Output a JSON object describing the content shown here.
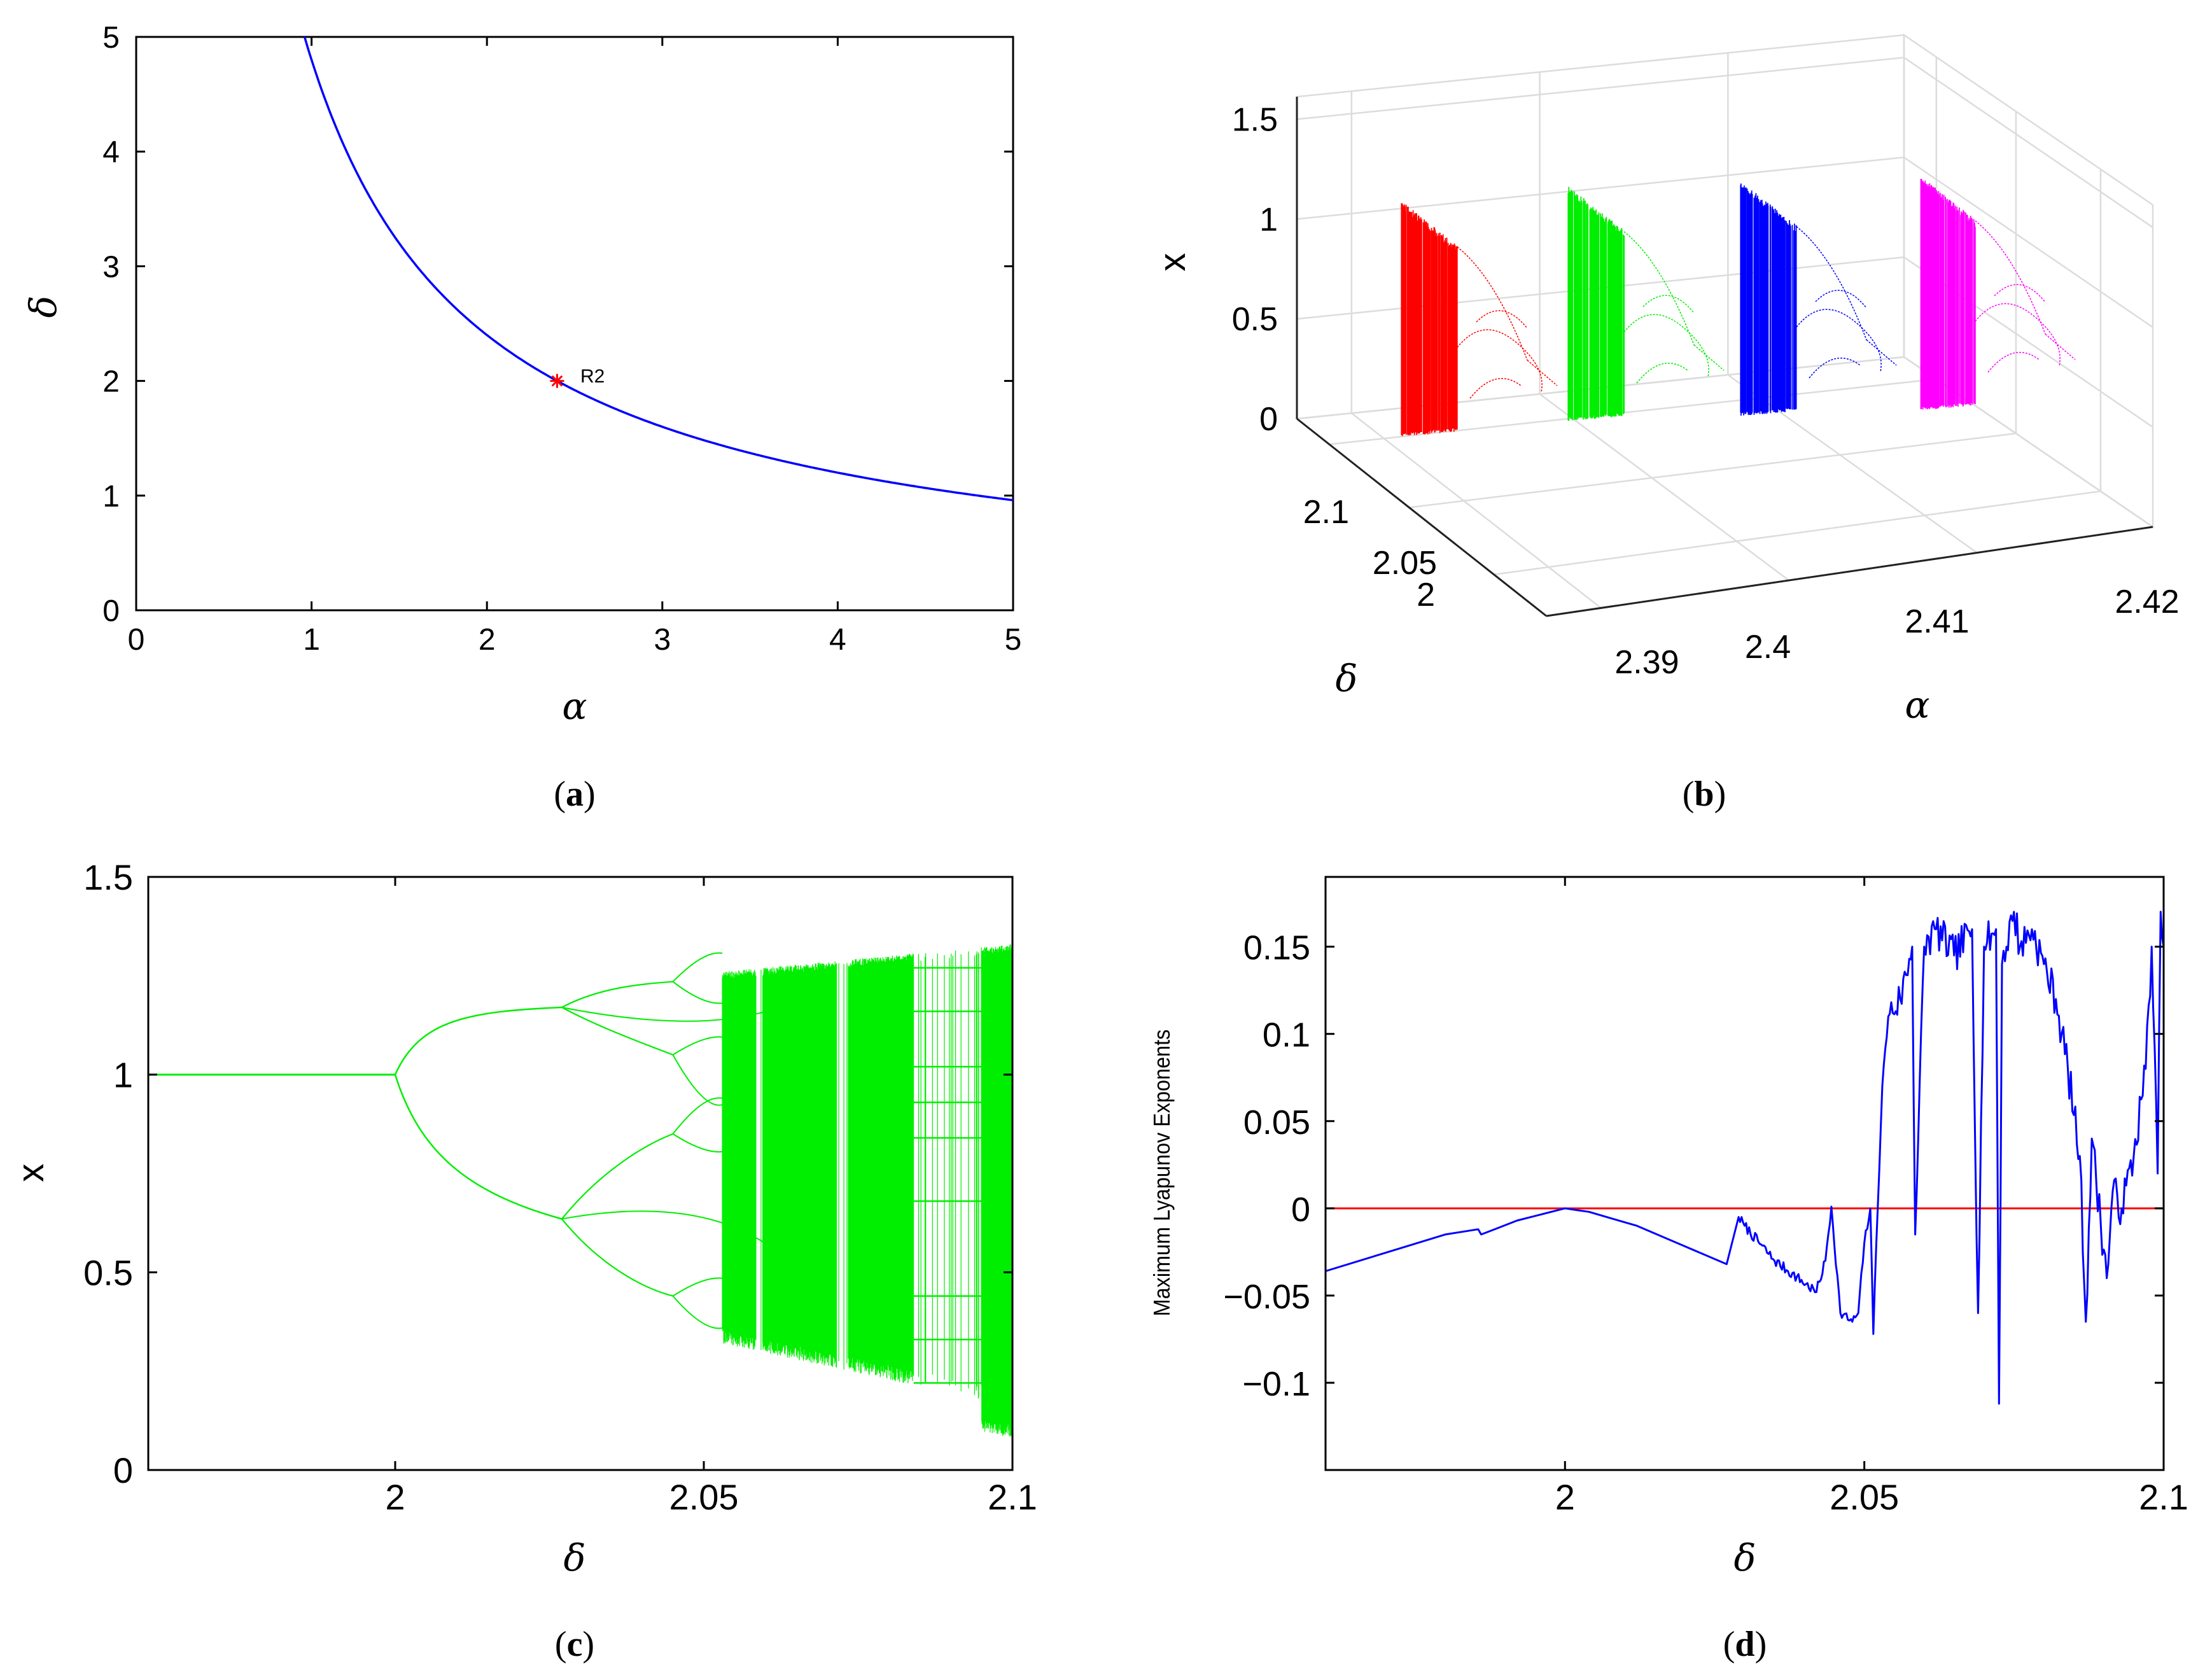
{
  "colors": {
    "blue": "#0000ff",
    "red": "#ff0000",
    "green": "#00ee00",
    "magenta": "#ff00ff",
    "grid": "#dddddd",
    "axis": "#000000"
  },
  "panels": {
    "a": {
      "caption_prefix": "(",
      "caption_letter": "a",
      "caption_suffix": ")",
      "chart_data": {
        "type": "line",
        "title": "",
        "xlabel": "α",
        "ylabel": "δ",
        "xlim": [
          0,
          5
        ],
        "ylim": [
          0,
          5
        ],
        "xticks": [
          0,
          1,
          2,
          3,
          4,
          5
        ],
        "xtick_labels": [
          "0",
          "1",
          "2",
          "3",
          "4",
          "5"
        ],
        "yticks": [
          0,
          1,
          2,
          3,
          4,
          5
        ],
        "ytick_labels": [
          "0",
          "1",
          "2",
          "3",
          "4",
          "5"
        ],
        "series": [
          {
            "name": "curve",
            "relation": "delta = 4.8 / alpha",
            "color": "#0000ff",
            "x_range": [
              0.96,
              5
            ]
          }
        ],
        "point": {
          "x": 2.4,
          "y": 2.0,
          "label": "R2",
          "color": "#ff0000",
          "marker": "*"
        }
      }
    },
    "b": {
      "caption_prefix": "(",
      "caption_letter": "b",
      "caption_suffix": ")",
      "chart_data": {
        "type": "scatter",
        "title": "",
        "xlabel": "α",
        "ylabel": "δ",
        "zlabel": "x",
        "xticks": [
          2.39,
          2.4,
          2.41,
          2.42
        ],
        "xtick_labels": [
          "2.39",
          "2.4",
          "2.41",
          "2.42"
        ],
        "yticks": [
          2,
          2.05,
          2.1
        ],
        "ytick_labels": [
          "2",
          "2.05",
          "2.1"
        ],
        "zticks": [
          0,
          0.5,
          1,
          1.5
        ],
        "ztick_labels": [
          "0",
          "0.5",
          "1",
          "1.5"
        ],
        "zlim": [
          0,
          1.5
        ],
        "slices": [
          {
            "alpha": 2.39,
            "color": "#ff0000"
          },
          {
            "alpha": 2.4,
            "color": "#00ee00"
          },
          {
            "alpha": 2.41,
            "color": "#0000ff"
          },
          {
            "alpha": 2.42,
            "color": "#ff00ff"
          }
        ],
        "grid": true
      }
    },
    "c": {
      "caption_prefix": "(",
      "caption_letter": "c",
      "caption_suffix": ")",
      "chart_data": {
        "type": "scatter",
        "title": "",
        "xlabel": "δ",
        "ylabel": "x",
        "xlim": [
          1.96,
          2.1
        ],
        "ylim": [
          0,
          1.5
        ],
        "xticks": [
          2,
          2.05,
          2.1
        ],
        "xtick_labels": [
          "2",
          "2.05",
          "2.1"
        ],
        "yticks": [
          0,
          0.5,
          1,
          1.5
        ],
        "ytick_labels": [
          "0",
          "0.5",
          "1",
          "1.5"
        ],
        "color": "#00ee00",
        "bifurcations": [
          {
            "delta": 2.0,
            "from_period": 1,
            "to_period": 2
          },
          {
            "delta": 2.027,
            "from_period": 2,
            "to_period": 4
          },
          {
            "delta": 2.045,
            "from_period": 4,
            "to_period": 8
          },
          {
            "delta": 2.053,
            "chaos_onset": true
          }
        ],
        "fixed_point": 1.0,
        "period2_branches": [
          1.17,
          0.64
        ],
        "chaos_band": [
          0.15,
          1.32
        ]
      }
    },
    "d": {
      "caption_prefix": "(",
      "caption_letter": "d",
      "caption_suffix": ")",
      "chart_data": {
        "type": "line",
        "title": "",
        "xlabel": "δ",
        "ylabel": "Maximum Lyapunov Exponents",
        "xlim": [
          1.96,
          2.1
        ],
        "ylim": [
          -0.15,
          0.19
        ],
        "xticks": [
          2,
          2.05,
          2.1
        ],
        "xtick_labels": [
          "2",
          "2.05",
          "2.1"
        ],
        "yticks": [
          0.15,
          0.1,
          0.05,
          0,
          -0.05,
          -0.1
        ],
        "ytick_labels": [
          "0.15",
          "0.1",
          "0.05",
          "0",
          "−0.05",
          "−0.1"
        ],
        "series": [
          {
            "name": "MLE",
            "color": "#0000ff",
            "x": [
              1.96,
              1.98,
              1.9855,
              1.986,
              1.992,
              2.0,
              2.004,
              2.012,
              2.027,
              2.029,
              2.03,
              2.035,
              2.042,
              2.0435,
              2.0445,
              2.046,
              2.048,
              2.049,
              2.05,
              2.051,
              2.0515,
              2.052,
              2.053,
              2.054,
              2.056,
              2.058,
              2.0585,
              2.06,
              2.062,
              2.065,
              2.068,
              2.069,
              2.07,
              2.072,
              2.0725,
              2.073,
              2.075,
              2.076,
              2.078,
              2.08,
              2.082,
              2.084,
              2.086,
              2.087,
              2.088,
              2.0905,
              2.0915,
              2.093,
              2.095,
              2.097,
              2.098,
              2.099,
              2.0995,
              2.1
            ],
            "y": [
              -0.036,
              -0.015,
              -0.012,
              -0.015,
              -0.007,
              0.0,
              -0.002,
              -0.01,
              -0.032,
              -0.005,
              -0.01,
              -0.03,
              -0.048,
              -0.03,
              0.001,
              -0.06,
              -0.065,
              -0.06,
              -0.02,
              0.0,
              -0.072,
              -0.02,
              0.07,
              0.11,
              0.12,
              0.15,
              -0.015,
              0.15,
              0.16,
              0.145,
              0.16,
              -0.06,
              0.15,
              0.16,
              -0.112,
              0.14,
              0.17,
              0.15,
              0.16,
              0.14,
              0.12,
              0.08,
              0.03,
              -0.065,
              0.04,
              -0.04,
              0.01,
              0.0,
              0.03,
              0.08,
              0.15,
              0.02,
              0.17,
              0.15
            ]
          },
          {
            "name": "zero line",
            "color": "#ff0000",
            "x": [
              1.96,
              2.1
            ],
            "y": [
              0,
              0
            ]
          }
        ]
      }
    }
  }
}
